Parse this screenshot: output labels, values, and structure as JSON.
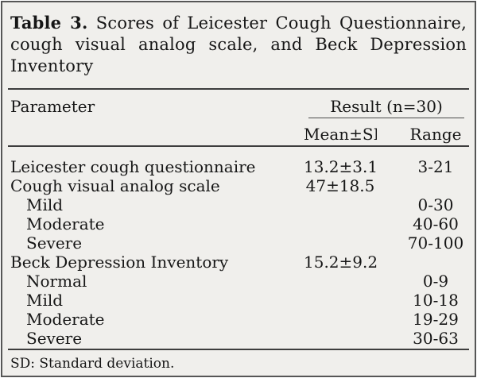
{
  "title": {
    "label": "Table 3.",
    "line1": "Scores of Leicester Cough Questionnaire,",
    "line2": "cough visual analog scale, and Beck Depression",
    "line3": "Inventory"
  },
  "table": {
    "columns": {
      "parameter": "Parameter",
      "result_group": "Result (n=30)",
      "mean": "Mean±SD",
      "range": "Range"
    },
    "rows": [
      {
        "parameter": "Leicester cough questionnaire",
        "indent": false,
        "mean": "13.2±3.1",
        "range": "3-21"
      },
      {
        "parameter": "Cough visual analog scale",
        "indent": false,
        "mean": "47±18.5",
        "range": ""
      },
      {
        "parameter": "Mild",
        "indent": true,
        "mean": "",
        "range": "0-30"
      },
      {
        "parameter": "Moderate",
        "indent": true,
        "mean": "",
        "range": "40-60"
      },
      {
        "parameter": "Severe",
        "indent": true,
        "mean": "",
        "range": "70-100"
      },
      {
        "parameter": "Beck Depression Inventory",
        "indent": false,
        "mean": "15.2±9.2",
        "range": ""
      },
      {
        "parameter": "Normal",
        "indent": true,
        "mean": "",
        "range": "0-9"
      },
      {
        "parameter": "Mild",
        "indent": true,
        "mean": "",
        "range": "10-18"
      },
      {
        "parameter": "Moderate",
        "indent": true,
        "mean": "",
        "range": "19-29"
      },
      {
        "parameter": "Severe",
        "indent": true,
        "mean": "",
        "range": "30-63"
      }
    ]
  },
  "footnote": "SD: Standard deviation.",
  "colors": {
    "panel_background": "#f0efec",
    "text": "#161616",
    "rule": "#3d3d3d",
    "border": "#565656"
  }
}
